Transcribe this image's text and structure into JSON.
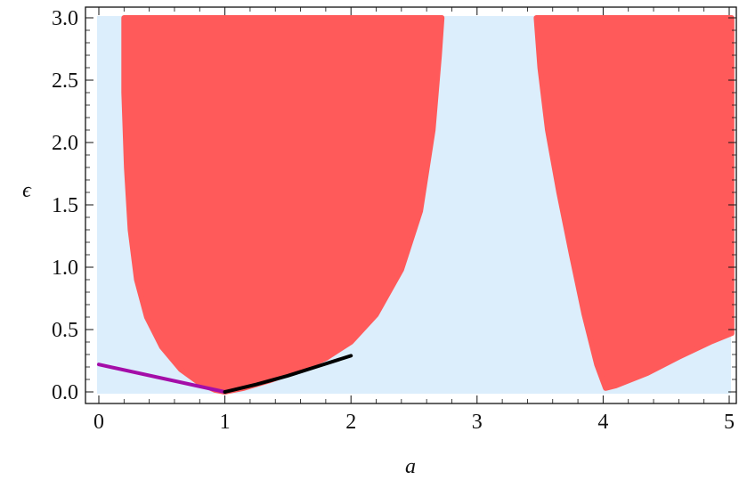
{
  "chart_data": {
    "type": "area",
    "xlabel": "a",
    "ylabel": "ϵ",
    "xlim": [
      -0.05,
      5.1
    ],
    "ylim": [
      -0.04,
      3.1
    ],
    "x_ticks": [
      0,
      1,
      2,
      3,
      4,
      5
    ],
    "x_tick_labels": [
      "0",
      "1",
      "2",
      "3",
      "4",
      "5"
    ],
    "y_ticks": [
      0.0,
      0.5,
      1.0,
      1.5,
      2.0,
      2.5,
      3.0
    ],
    "y_tick_labels": [
      "0.0",
      "0.5",
      "1.0",
      "1.5",
      "2.0",
      "2.5",
      "3.0"
    ],
    "grid": false,
    "background_region": {
      "x": [
        0,
        5
      ],
      "y": [
        0,
        3
      ],
      "color": "#dceefc"
    },
    "regions": [
      {
        "color": "#ff5a5a",
        "boundary": [
          [
            0.2,
            3.0
          ],
          [
            0.2,
            2.4
          ],
          [
            0.22,
            1.8
          ],
          [
            0.25,
            1.3
          ],
          [
            0.3,
            0.9
          ],
          [
            0.38,
            0.6
          ],
          [
            0.5,
            0.36
          ],
          [
            0.65,
            0.18
          ],
          [
            0.8,
            0.07
          ],
          [
            0.92,
            0.015
          ],
          [
            1.0,
            0.0
          ],
          [
            1.15,
            0.03
          ],
          [
            1.35,
            0.09
          ],
          [
            1.55,
            0.16
          ],
          [
            1.8,
            0.27
          ],
          [
            2.0,
            0.4
          ],
          [
            2.2,
            0.62
          ],
          [
            2.4,
            0.98
          ],
          [
            2.55,
            1.45
          ],
          [
            2.65,
            2.1
          ],
          [
            2.7,
            2.7
          ],
          [
            2.72,
            3.0
          ]
        ]
      },
      {
        "color": "#ff5a5a",
        "boundary": [
          [
            3.47,
            3.0
          ],
          [
            3.5,
            2.6
          ],
          [
            3.56,
            2.1
          ],
          [
            3.65,
            1.6
          ],
          [
            3.75,
            1.1
          ],
          [
            3.85,
            0.62
          ],
          [
            3.95,
            0.22
          ],
          [
            4.02,
            0.03
          ],
          [
            4.1,
            0.05
          ],
          [
            4.35,
            0.15
          ],
          [
            4.6,
            0.28
          ],
          [
            4.85,
            0.4
          ],
          [
            5.02,
            0.47
          ],
          [
            5.02,
            3.0
          ]
        ]
      }
    ],
    "series": [
      {
        "color": "#a40ea8",
        "x": [
          0,
          1
        ],
        "y": [
          0.22,
          0.0
        ]
      },
      {
        "color": "#000000",
        "x": [
          1,
          1.25,
          1.5,
          1.75,
          2.0
        ],
        "y": [
          0.0,
          0.06,
          0.13,
          0.21,
          0.29
        ]
      }
    ]
  }
}
